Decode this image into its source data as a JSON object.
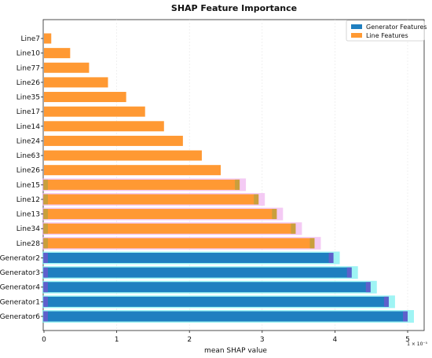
{
  "chart_data": {
    "type": "bar",
    "orientation": "horizontal",
    "title": "SHAP Feature Importance",
    "xlabel": "mean SHAP value",
    "ylabel": "",
    "x_scale_note": "1 × 10⁻⁵",
    "xlim": [
      0,
      5.3
    ],
    "xticks": [
      0,
      1,
      2,
      3,
      4,
      5
    ],
    "grid": "vertical",
    "legend_position": "top-right",
    "colors": {
      "generator": "#1f7fc0",
      "line": "#ff9933",
      "shadow_generator": "#7ff0f0",
      "shadow_line": "#f0b8f0"
    },
    "series": [
      {
        "name": "Generator Features",
        "color": "#1f7fc0"
      },
      {
        "name": "Line Features",
        "color": "#ff9933"
      }
    ],
    "categories": [
      "Line7",
      "Line10",
      "Line77",
      "Line26",
      "Line35",
      "Line17",
      "Line14",
      "Line24",
      "Line63",
      "Line26",
      "Line15",
      "Line12",
      "Line13",
      "Line34",
      "Line28",
      "Generator2",
      "Generator3",
      "Generator4",
      "Generator1",
      "Generator6"
    ],
    "values": [
      0.1,
      0.36,
      0.62,
      0.88,
      1.13,
      1.39,
      1.65,
      1.91,
      2.17,
      2.43,
      2.69,
      2.95,
      3.2,
      3.46,
      3.72,
      3.98,
      4.23,
      4.49,
      4.74,
      5.0
    ],
    "groups": [
      "line",
      "line",
      "line",
      "line",
      "line",
      "line",
      "line",
      "line",
      "line",
      "line",
      "line",
      "line",
      "line",
      "line",
      "line",
      "generator",
      "generator",
      "generator",
      "generator",
      "generator"
    ],
    "highlight": [
      false,
      false,
      false,
      false,
      false,
      false,
      false,
      false,
      false,
      false,
      true,
      true,
      true,
      true,
      true,
      true,
      true,
      true,
      true,
      true
    ]
  }
}
